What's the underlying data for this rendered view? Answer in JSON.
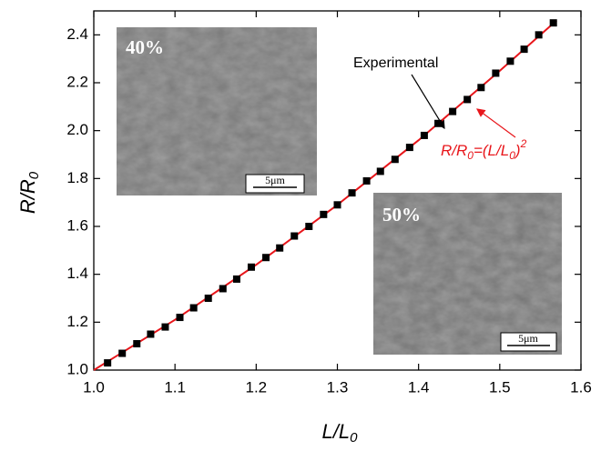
{
  "chart_data": {
    "type": "scatter",
    "xlabel": {
      "text": "L/L",
      "sub": "0"
    },
    "ylabel": {
      "text": "R/R",
      "sub": "0"
    },
    "xlim": [
      1.0,
      1.6
    ],
    "ylim": [
      1.0,
      2.5
    ],
    "xticks": [
      {
        "value": 1.0,
        "label": "1.0"
      },
      1.1,
      1.2,
      1.3,
      1.4,
      1.5,
      1.6
    ],
    "yticks": [
      {
        "value": 1.0,
        "label": "1.0"
      },
      1.2,
      1.4,
      1.6,
      1.8,
      {
        "value": 2.0,
        "label": "2.0"
      },
      2.2,
      2.4
    ],
    "series": [
      {
        "name": "Experimental",
        "mode": "markers",
        "color": "#000000",
        "x": [
          1.017,
          1.035,
          1.053,
          1.07,
          1.088,
          1.106,
          1.123,
          1.141,
          1.159,
          1.176,
          1.194,
          1.212,
          1.229,
          1.247,
          1.265,
          1.283,
          1.3,
          1.318,
          1.336,
          1.353,
          1.371,
          1.389,
          1.407,
          1.424,
          1.442,
          1.46,
          1.477,
          1.495,
          1.513,
          1.53,
          1.548,
          1.566
        ],
        "values": [
          1.03,
          1.07,
          1.11,
          1.15,
          1.18,
          1.22,
          1.26,
          1.3,
          1.34,
          1.38,
          1.43,
          1.47,
          1.51,
          1.56,
          1.6,
          1.65,
          1.69,
          1.74,
          1.79,
          1.83,
          1.88,
          1.93,
          1.98,
          2.03,
          2.08,
          2.13,
          2.18,
          2.24,
          2.29,
          2.34,
          2.4,
          2.45
        ]
      },
      {
        "mode": "line",
        "color": "#e8161b",
        "x": [
          1.0,
          1.1,
          1.2,
          1.3,
          1.4,
          1.5,
          1.57
        ],
        "values": [
          1.0,
          1.21,
          1.44,
          1.69,
          1.96,
          2.25,
          2.46
        ]
      }
    ],
    "formula": {
      "a": "R/R",
      "b": "0",
      "c": "=(L/L",
      "d": "0",
      "e": ")",
      "f": "2"
    },
    "insets": [
      {
        "label": "40%",
        "scale": "5μm"
      },
      {
        "label": "50%",
        "scale": "5μm"
      }
    ]
  }
}
